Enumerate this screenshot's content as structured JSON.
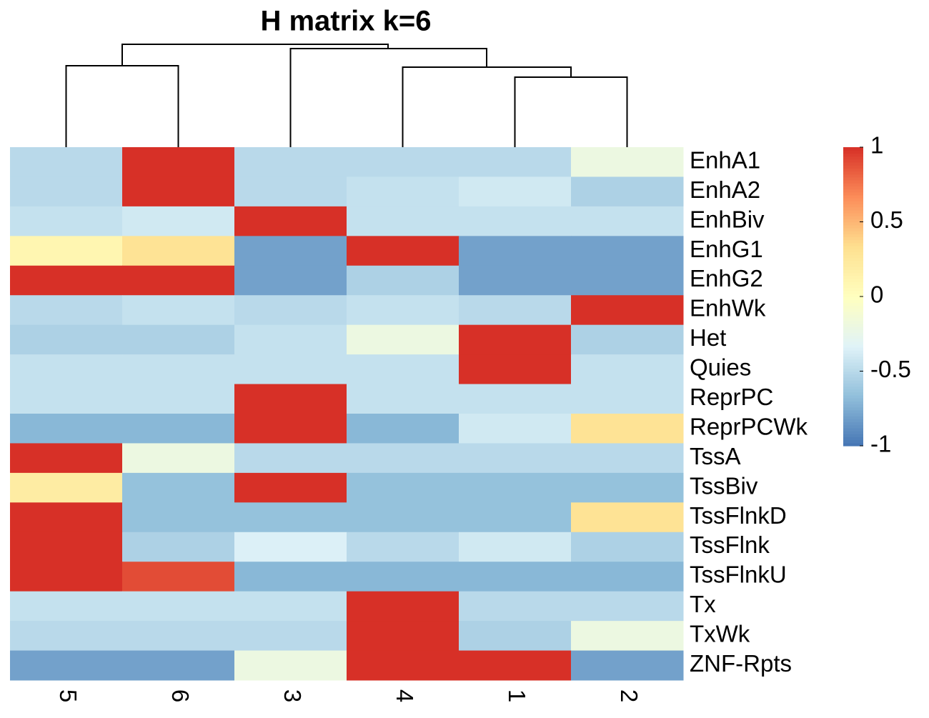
{
  "chart_data": {
    "type": "heatmap",
    "title": "H matrix k=6",
    "x": [
      "5",
      "6",
      "3",
      "4",
      "1",
      "2"
    ],
    "y": [
      "EnhA1",
      "EnhA2",
      "EnhBiv",
      "EnhG1",
      "EnhG2",
      "EnhWk",
      "Het",
      "Quies",
      "ReprPC",
      "ReprPCWk",
      "TssA",
      "TssBiv",
      "TssFlnkD",
      "TssFlnk",
      "TssFlnkU",
      "Tx",
      "TxWk",
      "ZNF-Rpts"
    ],
    "values": [
      [
        -0.5,
        1,
        -0.5,
        -0.5,
        -0.5,
        -0.2
      ],
      [
        -0.5,
        1,
        -0.5,
        -0.45,
        -0.4,
        -0.55
      ],
      [
        -0.45,
        -0.4,
        1,
        -0.45,
        -0.45,
        -0.45
      ],
      [
        0.1,
        0.3,
        -0.8,
        1,
        -0.8,
        -0.8
      ],
      [
        1,
        1,
        -0.8,
        -0.55,
        -0.8,
        -0.8
      ],
      [
        -0.5,
        -0.45,
        -0.5,
        -0.45,
        -0.5,
        1
      ],
      [
        -0.55,
        -0.55,
        -0.45,
        -0.2,
        1,
        -0.55
      ],
      [
        -0.45,
        -0.45,
        -0.45,
        -0.45,
        1,
        -0.45
      ],
      [
        -0.45,
        -0.45,
        1,
        -0.45,
        -0.45,
        -0.45
      ],
      [
        -0.7,
        -0.7,
        1,
        -0.7,
        -0.4,
        0.3
      ],
      [
        1,
        -0.2,
        -0.5,
        -0.5,
        -0.5,
        -0.5
      ],
      [
        0.2,
        -0.65,
        1,
        -0.65,
        -0.65,
        -0.65
      ],
      [
        1,
        -0.65,
        -0.65,
        -0.65,
        -0.65,
        0.3
      ],
      [
        1,
        -0.55,
        -0.35,
        -0.5,
        -0.4,
        -0.55
      ],
      [
        1,
        0.9,
        -0.7,
        -0.7,
        -0.7,
        -0.7
      ],
      [
        -0.45,
        -0.45,
        -0.45,
        1,
        -0.5,
        -0.5
      ],
      [
        -0.5,
        -0.5,
        -0.5,
        1,
        -0.55,
        -0.2
      ],
      [
        -0.8,
        -0.8,
        -0.2,
        1,
        1,
        -0.8
      ]
    ],
    "colors": [
      "#4575B4",
      "#91BFDB",
      "#E0F3F8",
      "#FFFFBF",
      "#FEE090",
      "#FC8D59",
      "#D73027"
    ],
    "zlim": [
      -1,
      1
    ],
    "zticks": [
      1,
      0.5,
      0,
      -0.5,
      -1
    ]
  }
}
